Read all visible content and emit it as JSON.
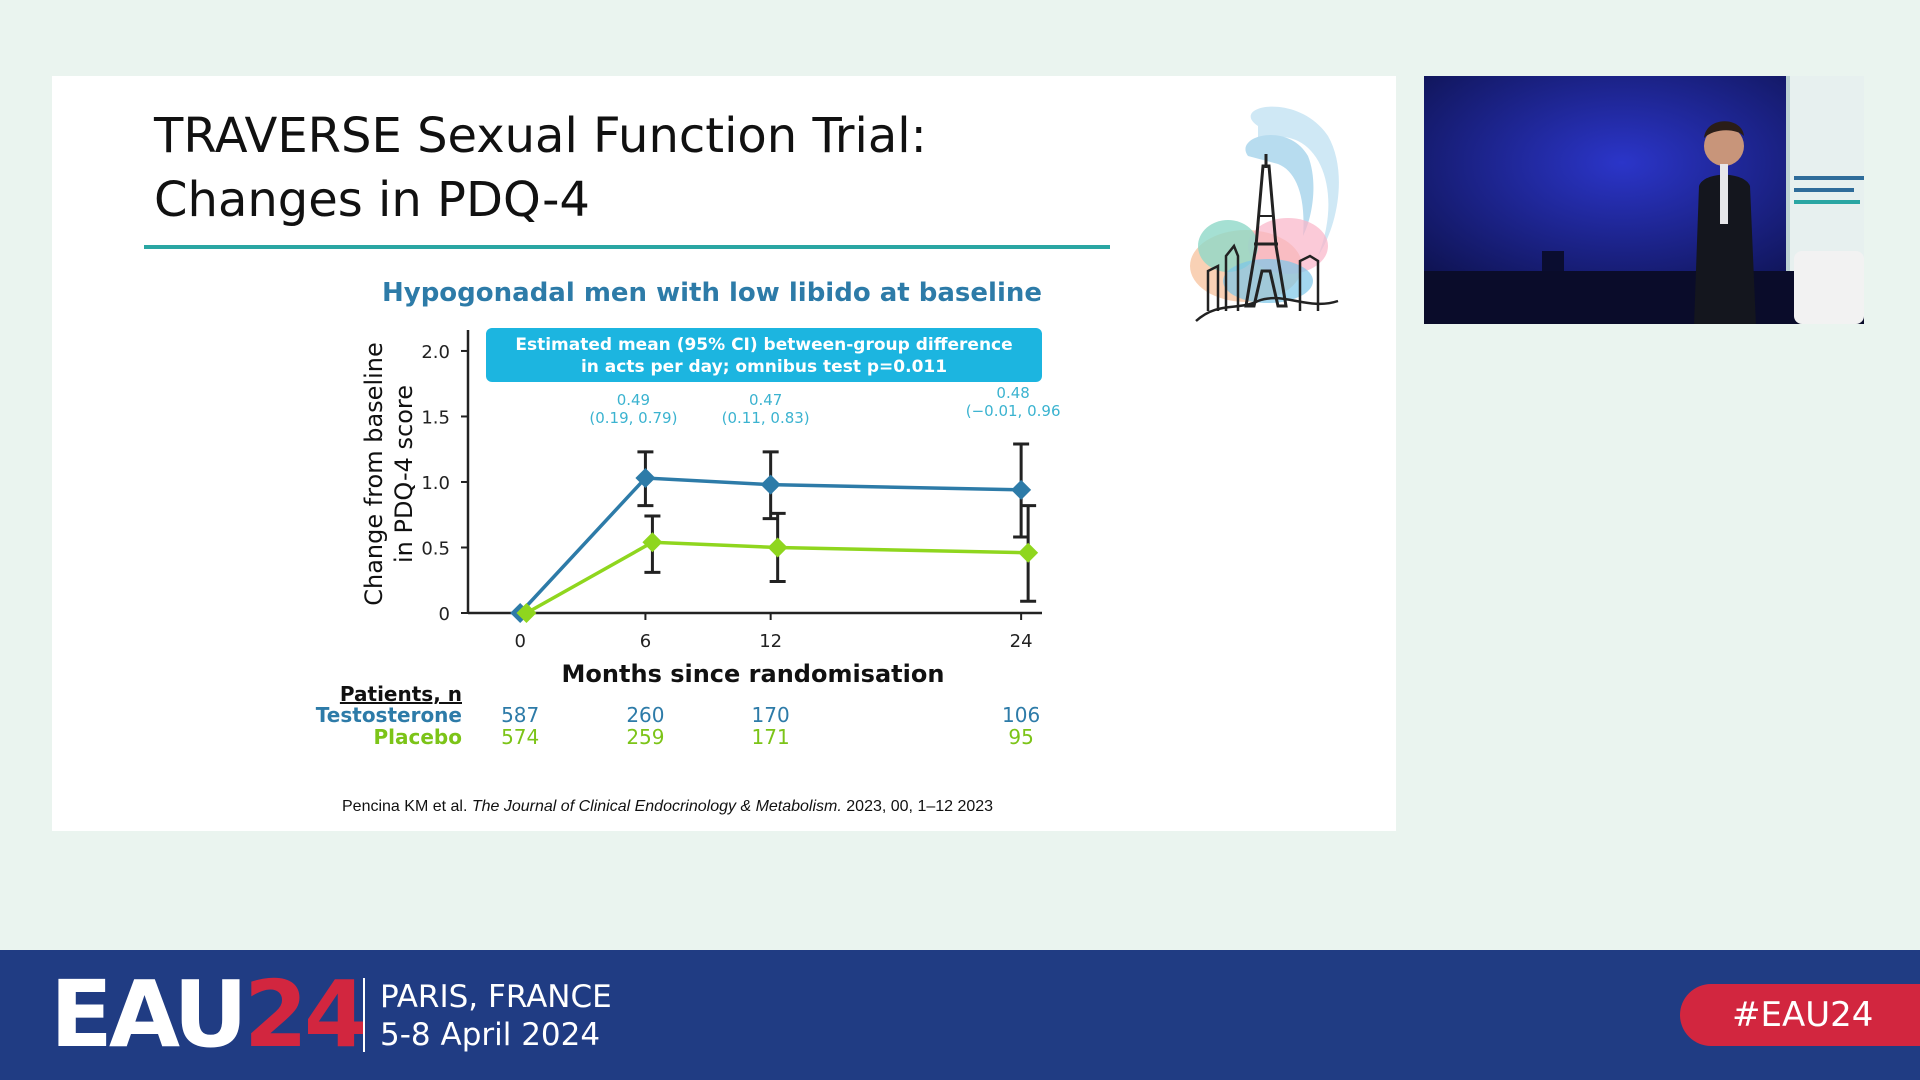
{
  "slide": {
    "title_line1": "TRAVERSE Sexual Function Trial:",
    "title_line2": "Changes in PDQ-4",
    "citation_authors": "Pencina KM et al.",
    "citation_journal": "The Journal of Clinical Endocrinology & Metabolism.",
    "citation_rest": "2023, 00, 1–12 2023"
  },
  "chart_data": {
    "type": "line",
    "title": "Hypogonadal men with low libido at baseline",
    "xlabel": "Months since randomisation",
    "ylabel_line1": "Change from baseline",
    "ylabel_line2": "in PDQ-4 score",
    "x": [
      0,
      6,
      12,
      24
    ],
    "x_ticks": [
      "0",
      "6",
      "12",
      "24"
    ],
    "y_ticks": [
      "0",
      "0.5",
      "1.0",
      "1.5",
      "2.0"
    ],
    "ylim": [
      0,
      2.0
    ],
    "xlim": [
      -2.5,
      25
    ],
    "banner_line1": "Estimated mean (95% CI) between-group difference",
    "banner_line2": "in acts per day; omnibus test p=0.011",
    "series": [
      {
        "name": "Testosterone",
        "color": "#2d7ba8",
        "values": [
          0,
          1.03,
          0.98,
          0.94
        ],
        "ci_low": [
          null,
          0.82,
          0.72,
          0.58
        ],
        "ci_high": [
          null,
          1.23,
          1.23,
          1.29
        ]
      },
      {
        "name": "Placebo",
        "color": "#8fd61e",
        "values": [
          0,
          0.54,
          0.5,
          0.46
        ],
        "ci_low": [
          null,
          0.31,
          0.24,
          0.09
        ],
        "ci_high": [
          null,
          0.74,
          0.76,
          0.82
        ]
      }
    ],
    "differences": [
      {
        "x": 6,
        "estimate": "0.49",
        "ci": "(0.19, 0.79)"
      },
      {
        "x": 12,
        "estimate": "0.47",
        "ci": "(0.11, 0.83)"
      },
      {
        "x": 24,
        "estimate": "0.48",
        "ci": "(−0.01, 0.96"
      }
    ],
    "patients_header": "Patients, n",
    "patients": [
      {
        "name": "Testosterone",
        "counts": [
          "587",
          "260",
          "170",
          "106"
        ]
      },
      {
        "name": "Placebo",
        "counts": [
          "574",
          "259",
          "171",
          "95"
        ]
      }
    ]
  },
  "colors": {
    "testosterone": "#2d7ba8",
    "placebo": "#8fd61e",
    "annotation": "#3bb3d0",
    "banner": "#1cb5e0",
    "title_rule": "#2aa6a3",
    "footer_bg": "#203c83",
    "accent_red": "#d2263f"
  },
  "footer": {
    "logo_letters": "EAU",
    "logo_number": "24",
    "city": "PARIS, FRANCE",
    "dates": "5-8 April 2024",
    "hashtag": "#EAU24"
  },
  "icons": {
    "slide_logo": "paris-eiffel-tower-illustration",
    "video": "speaker-video-feed"
  }
}
